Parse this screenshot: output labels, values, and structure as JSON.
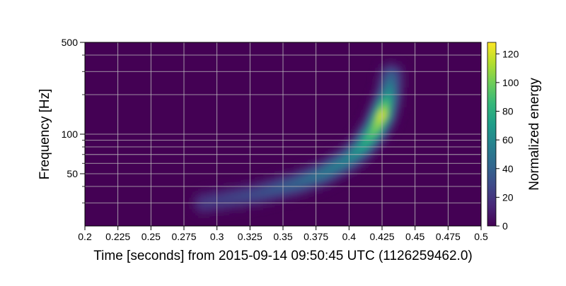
{
  "chart_data": {
    "type": "heatmap",
    "title": "",
    "xlabel": "Time [seconds] from 2015-09-14 09:50:45 UTC (1126259462.0)",
    "ylabel": "Frequency [Hz]",
    "xlim": [
      0.2,
      0.5
    ],
    "ylim": [
      20,
      500
    ],
    "yscale": "log",
    "x_ticks": [
      "0.2",
      "0.225",
      "0.25",
      "0.275",
      "0.3",
      "0.325",
      "0.35",
      "0.375",
      "0.4",
      "0.425",
      "0.45",
      "0.475",
      "0.5"
    ],
    "y_ticks": [
      {
        "value": 50,
        "label": "50"
      },
      {
        "value": 100,
        "label": "100"
      },
      {
        "value": 500,
        "label": "500"
      }
    ],
    "grid": true,
    "colormap": "viridis",
    "colorbar": {
      "label": "Normalized energy",
      "range": [
        0,
        128
      ],
      "ticks": [
        "0",
        "20",
        "40",
        "60",
        "80",
        "100",
        "120"
      ]
    },
    "chirp_track": [
      {
        "t": 0.29,
        "f": 30,
        "energy": 22
      },
      {
        "t": 0.33,
        "f": 35,
        "energy": 30
      },
      {
        "t": 0.36,
        "f": 42,
        "energy": 42
      },
      {
        "t": 0.38,
        "f": 50,
        "energy": 52
      },
      {
        "t": 0.4,
        "f": 65,
        "energy": 60
      },
      {
        "t": 0.41,
        "f": 80,
        "energy": 75
      },
      {
        "t": 0.42,
        "f": 110,
        "energy": 105
      },
      {
        "t": 0.425,
        "f": 140,
        "energy": 128
      },
      {
        "t": 0.43,
        "f": 200,
        "energy": 70
      },
      {
        "t": 0.432,
        "f": 280,
        "energy": 40
      }
    ],
    "colors": {
      "background": "#440154",
      "grid": "#bbbbbb"
    }
  }
}
